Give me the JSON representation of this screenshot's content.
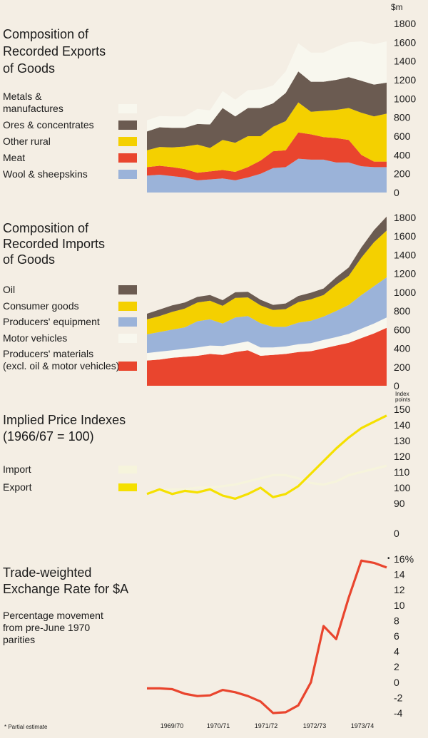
{
  "unit_label": "$m",
  "footnote": "* Partial estimate",
  "x_ticks": [
    "1969/70",
    "1970/71",
    "1971/72",
    "1972/73",
    "1973/74"
  ],
  "colors": {
    "background": "#f4eee4",
    "metals": "#f8f7ee",
    "ores": "#6b5b51",
    "other_rural": "#f4d000",
    "meat": "#e9452e",
    "wool": "#9bb3d9",
    "oil": "#6b5b51",
    "consumer": "#f4d000",
    "equipment": "#9bb3d9",
    "motor": "#f8f7ee",
    "materials": "#e9452e",
    "import_line": "#f6f4dc",
    "export_line": "#f5e000",
    "fx_line": "#e9452e"
  },
  "chart_data": [
    {
      "type": "area",
      "stacked": true,
      "title": "Composition of Recorded Exports of Goods",
      "title_lines": [
        "Composition of",
        "Recorded Exports",
        "of Goods"
      ],
      "ylim": [
        0,
        1800
      ],
      "yticks": [
        0,
        200,
        400,
        600,
        800,
        1000,
        1200,
        1400,
        1600,
        1800
      ],
      "x": [
        0,
        1,
        2,
        3,
        4,
        5,
        6,
        7,
        8,
        9,
        10,
        11,
        12,
        13,
        14,
        15,
        16,
        17,
        18,
        19
      ],
      "series": [
        {
          "name": "Wool & sheepskins",
          "label_lines": [
            "Wool & sheepskins"
          ],
          "color_key": "wool",
          "values": [
            180,
            190,
            175,
            160,
            130,
            140,
            150,
            130,
            160,
            200,
            260,
            270,
            360,
            350,
            350,
            320,
            320,
            280,
            270,
            270
          ]
        },
        {
          "name": "Meat",
          "label_lines": [
            "Meat"
          ],
          "color_key": "meat",
          "values": [
            90,
            95,
            95,
            90,
            80,
            85,
            90,
            90,
            110,
            140,
            180,
            180,
            280,
            270,
            240,
            260,
            240,
            120,
            60,
            60
          ]
        },
        {
          "name": "Other rural",
          "label_lines": [
            "Other rural"
          ],
          "color_key": "other_rural",
          "values": [
            180,
            200,
            210,
            240,
            300,
            250,
            320,
            310,
            330,
            260,
            260,
            310,
            320,
            240,
            280,
            300,
            340,
            450,
            480,
            510
          ]
        },
        {
          "name": "Ores & concentrates",
          "label_lines": [
            "Ores & concentrates"
          ],
          "color_key": "ores",
          "values": [
            200,
            210,
            210,
            200,
            220,
            250,
            340,
            280,
            300,
            300,
            250,
            300,
            330,
            320,
            310,
            320,
            330,
            340,
            340,
            330
          ]
        },
        {
          "name": "Metals & manufactures",
          "label_lines": [
            "Metals &",
            "manufactures"
          ],
          "color_key": "metals",
          "values": [
            120,
            120,
            120,
            120,
            160,
            150,
            180,
            180,
            190,
            200,
            190,
            230,
            300,
            310,
            310,
            350,
            370,
            420,
            430,
            440
          ]
        }
      ]
    },
    {
      "type": "area",
      "stacked": true,
      "title": "Composition of Recorded Imports of Goods",
      "title_lines": [
        "Composition of",
        "Recorded Imports",
        "of Goods"
      ],
      "ylim": [
        0,
        1800
      ],
      "yticks": [
        0,
        200,
        400,
        600,
        800,
        1000,
        1200,
        1400,
        1600,
        1800
      ],
      "x": [
        0,
        1,
        2,
        3,
        4,
        5,
        6,
        7,
        8,
        9,
        10,
        11,
        12,
        13,
        14,
        15,
        16,
        17,
        18,
        19
      ],
      "series": [
        {
          "name": "Producers' materials (excl. oil & motor vehicles)",
          "label_lines": [
            "Producers' materials",
            "(excl. oil & motor vehicles)"
          ],
          "color_key": "materials",
          "values": [
            270,
            280,
            300,
            310,
            320,
            340,
            330,
            360,
            380,
            320,
            330,
            340,
            360,
            370,
            400,
            430,
            460,
            510,
            560,
            620
          ]
        },
        {
          "name": "Motor vehicles",
          "label_lines": [
            "Motor vehicles"
          ],
          "color_key": "motor",
          "values": [
            80,
            85,
            80,
            85,
            90,
            90,
            95,
            90,
            95,
            90,
            80,
            80,
            85,
            85,
            90,
            90,
            95,
            100,
            105,
            110
          ]
        },
        {
          "name": "Producers' equipment",
          "label_lines": [
            "Producers' equipment"
          ],
          "color_key": "equipment",
          "values": [
            200,
            210,
            220,
            230,
            280,
            280,
            240,
            280,
            270,
            260,
            220,
            210,
            230,
            240,
            250,
            280,
            310,
            360,
            400,
            430
          ]
        },
        {
          "name": "Consumer goods",
          "label_lines": [
            "Consumer goods"
          ],
          "color_key": "consumer",
          "values": [
            160,
            170,
            190,
            200,
            200,
            200,
            190,
            210,
            200,
            190,
            180,
            190,
            220,
            230,
            230,
            280,
            310,
            400,
            470,
            500
          ]
        },
        {
          "name": "Oil",
          "label_lines": [
            "Oil"
          ],
          "color_key": "oil",
          "values": [
            60,
            70,
            70,
            65,
            60,
            60,
            60,
            60,
            60,
            60,
            55,
            60,
            65,
            70,
            70,
            80,
            90,
            110,
            130,
            150
          ]
        }
      ]
    },
    {
      "type": "line",
      "title": "Implied Price Indexes (1966/67 = 100)",
      "title_lines": [
        "Implied Price Indexes",
        "(1966/67 = 100)"
      ],
      "unit_lines": [
        "Index",
        "points"
      ],
      "ylim": [
        0,
        150
      ],
      "ylim_plot": [
        80,
        150
      ],
      "yticks": [
        0,
        90,
        100,
        110,
        120,
        130,
        140,
        150
      ],
      "x": [
        0,
        1,
        2,
        3,
        4,
        5,
        6,
        7,
        8,
        9,
        10,
        11,
        12,
        13,
        14,
        15,
        16,
        17,
        18,
        19
      ],
      "series": [
        {
          "name": "Import",
          "color_key": "import_line",
          "values": [
            97,
            98,
            99,
            99,
            100,
            100,
            101,
            102,
            104,
            106,
            108,
            108,
            106,
            103,
            102,
            104,
            108,
            110,
            112,
            114
          ]
        },
        {
          "name": "Export",
          "color_key": "export_line",
          "values": [
            96,
            99,
            96,
            98,
            97,
            99,
            95,
            93,
            96,
            100,
            94,
            96,
            101,
            109,
            117,
            125,
            132,
            138,
            142,
            146
          ]
        }
      ]
    },
    {
      "type": "line",
      "title": "Trade-weighted Exchange Rate for $A",
      "title_lines": [
        "Trade-weighted",
        "Exchange Rate for $A"
      ],
      "subtitle_lines": [
        "Percentage movement",
        "from pre-June 1970",
        "parities"
      ],
      "ylim": [
        -4,
        16
      ],
      "yticks": [
        "16%",
        "14",
        "12",
        "10",
        "8",
        "6",
        "4",
        "2",
        "0",
        "-2",
        "-4"
      ],
      "x": [
        0,
        1,
        2,
        3,
        4,
        5,
        6,
        7,
        8,
        9,
        10,
        11,
        12,
        13,
        14,
        15,
        16,
        17,
        18,
        19
      ],
      "series": [
        {
          "name": "Exchange rate",
          "color_key": "fx_line",
          "values": [
            -0.8,
            -0.8,
            -0.9,
            -1.5,
            -1.8,
            -1.7,
            -1.0,
            -1.3,
            -1.8,
            -2.5,
            -4.0,
            -3.9,
            -3.0,
            0.0,
            7.3,
            5.6,
            11.0,
            15.8,
            15.5,
            14.9
          ]
        }
      ]
    }
  ]
}
